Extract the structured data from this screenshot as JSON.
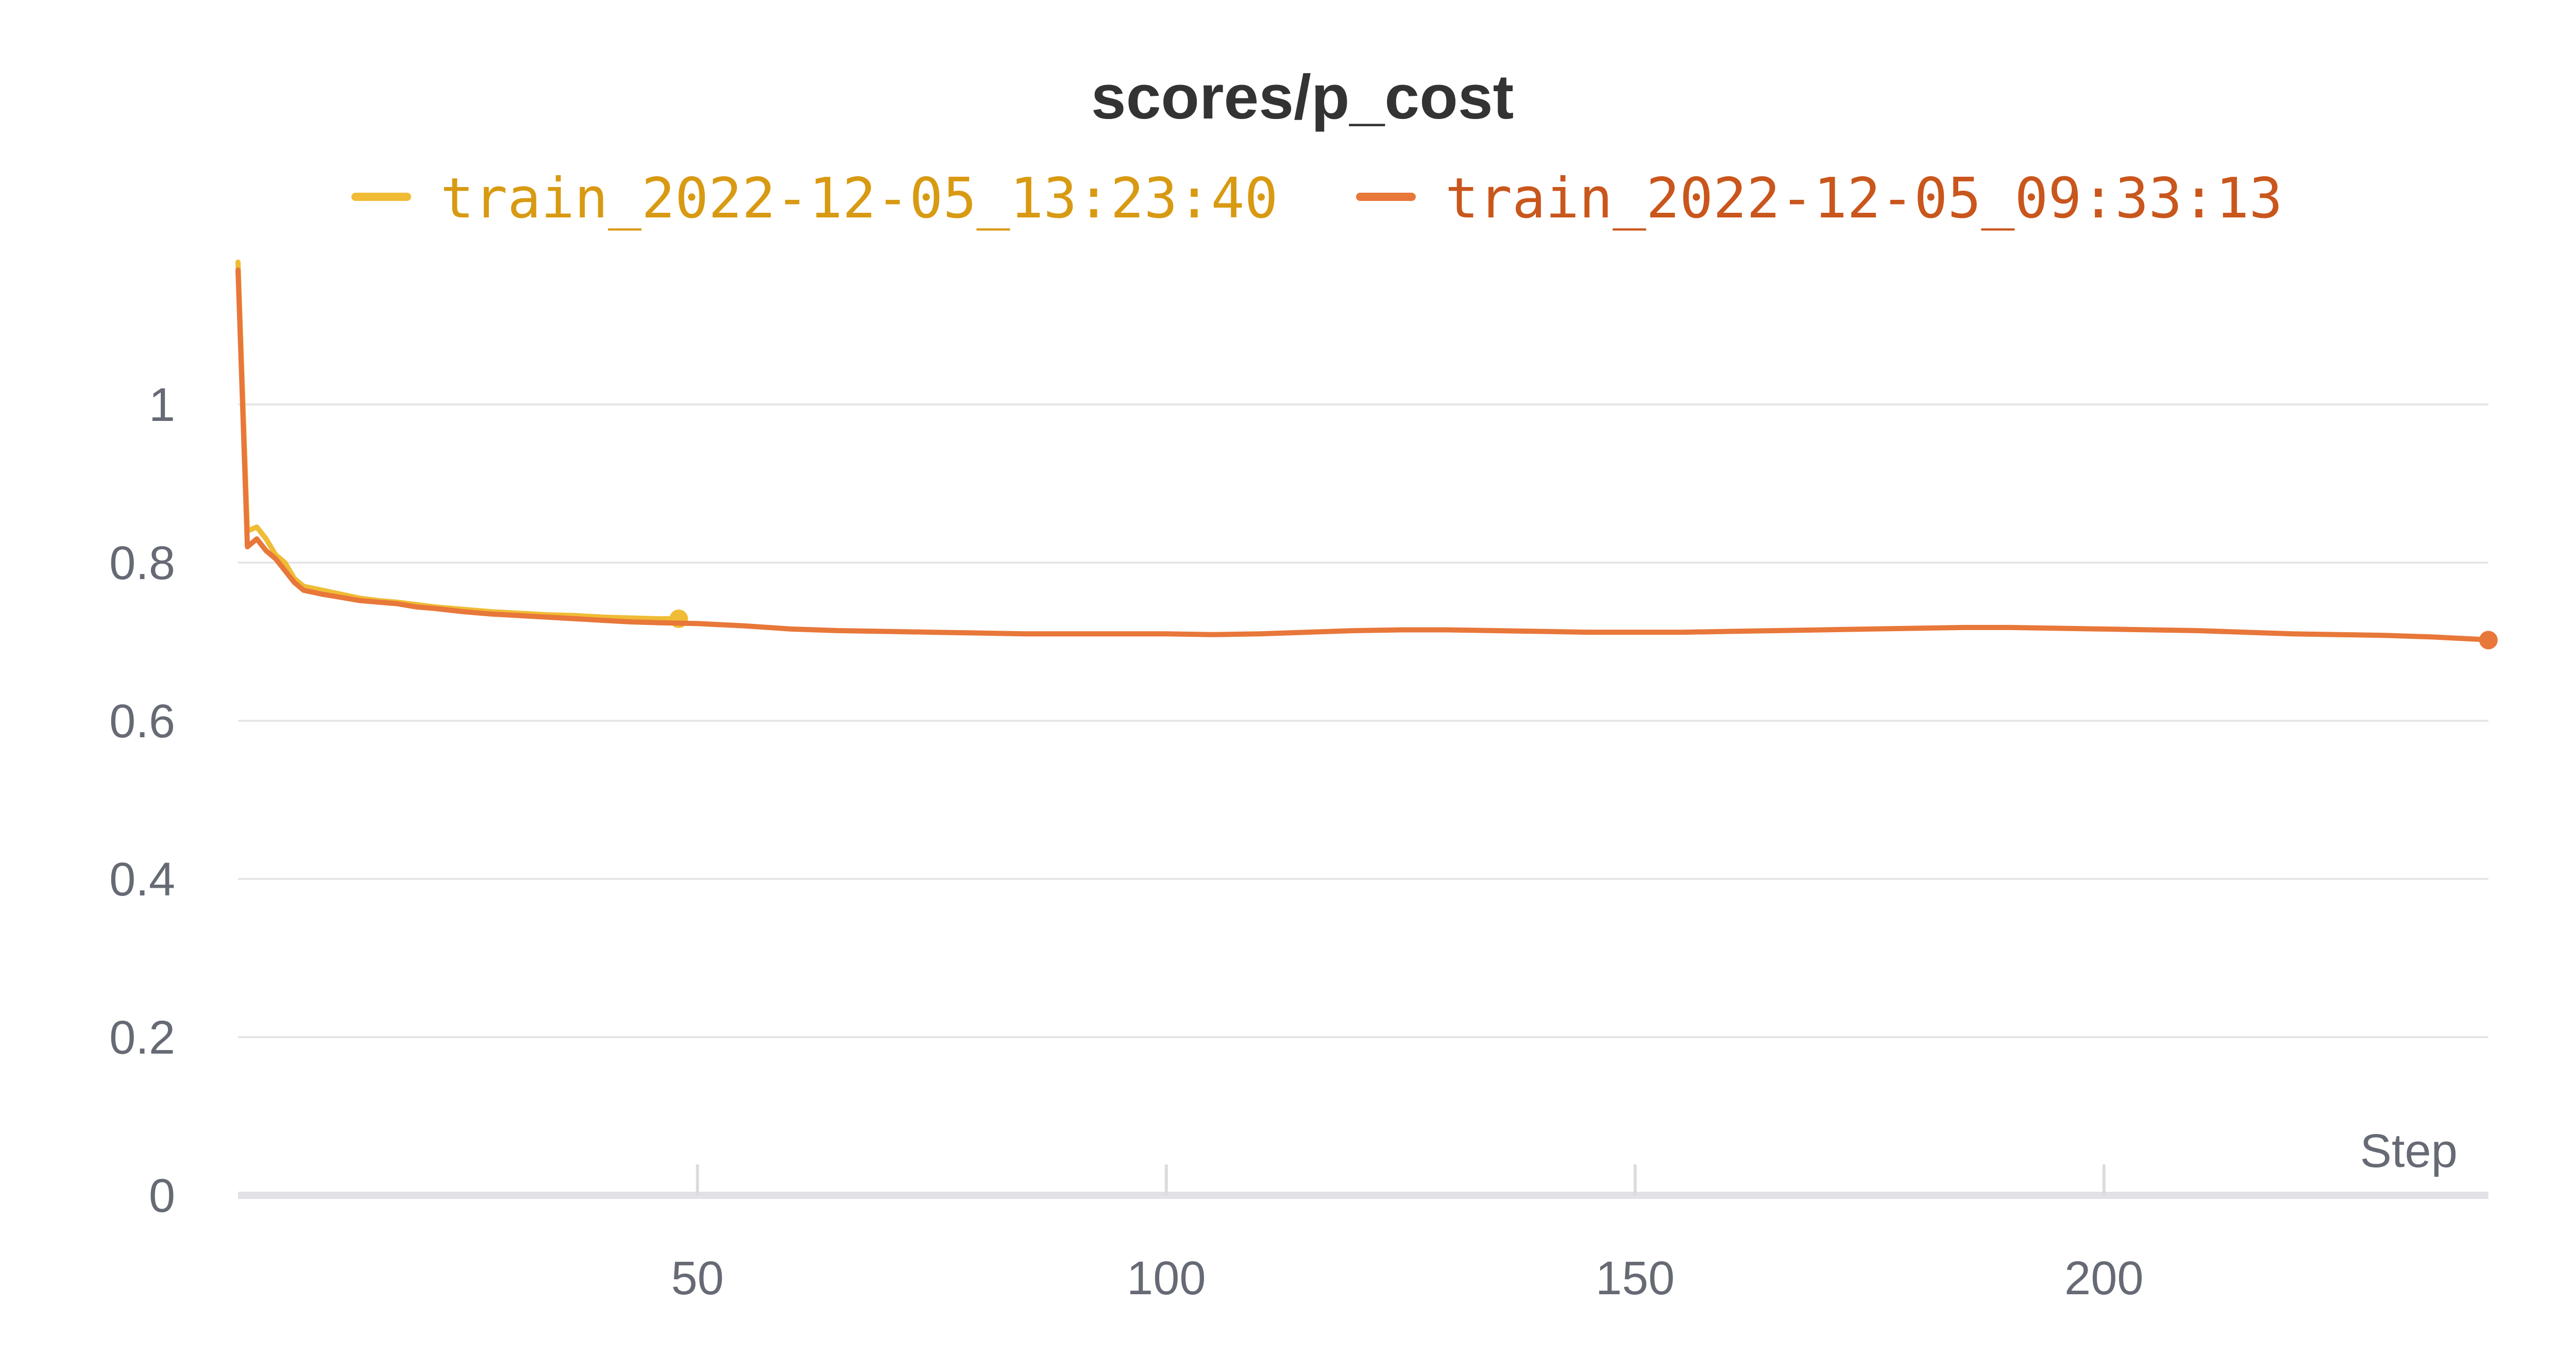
{
  "chart_data": {
    "type": "line",
    "title": "scores/p_cost",
    "xlabel": "Step",
    "ylabel": "",
    "xlim": [
      1,
      241
    ],
    "ylim": [
      0,
      1.18
    ],
    "x_ticks": [
      50,
      100,
      150,
      200
    ],
    "x_tick_labels": [
      "50",
      "100",
      "150",
      "200"
    ],
    "y_ticks": [
      0,
      0.2,
      0.4,
      0.6,
      0.8,
      1
    ],
    "y_tick_labels": [
      "0",
      "0.2",
      "0.4",
      "0.6",
      "0.8",
      "1"
    ],
    "grid": true,
    "legend_position": "top",
    "series": [
      {
        "name": "train_2022-12-05_13:23:40",
        "color": "#F0BC35",
        "legend_text_color": "#D89A12",
        "end_marker": true,
        "points": [
          [
            1,
            1.18
          ],
          [
            2,
            0.84
          ],
          [
            3,
            0.845
          ],
          [
            4,
            0.83
          ],
          [
            5,
            0.81
          ],
          [
            6,
            0.8
          ],
          [
            7,
            0.78
          ],
          [
            8,
            0.77
          ],
          [
            10,
            0.765
          ],
          [
            12,
            0.76
          ],
          [
            14,
            0.755
          ],
          [
            16,
            0.752
          ],
          [
            18,
            0.75
          ],
          [
            20,
            0.747
          ],
          [
            22,
            0.744
          ],
          [
            25,
            0.741
          ],
          [
            28,
            0.738
          ],
          [
            31,
            0.736
          ],
          [
            34,
            0.734
          ],
          [
            37,
            0.733
          ],
          [
            40,
            0.731
          ],
          [
            43,
            0.73
          ],
          [
            46,
            0.729
          ],
          [
            48,
            0.729
          ]
        ]
      },
      {
        "name": "train_2022-12-05_09:33:13",
        "color": "#E8773A",
        "legend_text_color": "#C9561C",
        "end_marker": true,
        "points": [
          [
            1,
            1.17
          ],
          [
            2,
            0.82
          ],
          [
            3,
            0.83
          ],
          [
            4,
            0.815
          ],
          [
            5,
            0.805
          ],
          [
            6,
            0.79
          ],
          [
            7,
            0.775
          ],
          [
            8,
            0.765
          ],
          [
            10,
            0.76
          ],
          [
            12,
            0.756
          ],
          [
            14,
            0.752
          ],
          [
            16,
            0.75
          ],
          [
            18,
            0.748
          ],
          [
            20,
            0.744
          ],
          [
            22,
            0.742
          ],
          [
            25,
            0.738
          ],
          [
            28,
            0.735
          ],
          [
            31,
            0.733
          ],
          [
            34,
            0.731
          ],
          [
            37,
            0.729
          ],
          [
            40,
            0.727
          ],
          [
            43,
            0.725
          ],
          [
            46,
            0.724
          ],
          [
            50,
            0.723
          ],
          [
            55,
            0.72
          ],
          [
            60,
            0.716
          ],
          [
            65,
            0.714
          ],
          [
            70,
            0.713
          ],
          [
            75,
            0.712
          ],
          [
            80,
            0.711
          ],
          [
            85,
            0.71
          ],
          [
            90,
            0.71
          ],
          [
            95,
            0.71
          ],
          [
            100,
            0.71
          ],
          [
            105,
            0.709
          ],
          [
            110,
            0.71
          ],
          [
            115,
            0.712
          ],
          [
            120,
            0.714
          ],
          [
            125,
            0.715
          ],
          [
            130,
            0.715
          ],
          [
            135,
            0.714
          ],
          [
            140,
            0.713
          ],
          [
            145,
            0.712
          ],
          [
            150,
            0.712
          ],
          [
            155,
            0.712
          ],
          [
            160,
            0.713
          ],
          [
            165,
            0.714
          ],
          [
            170,
            0.715
          ],
          [
            175,
            0.716
          ],
          [
            180,
            0.717
          ],
          [
            185,
            0.718
          ],
          [
            190,
            0.718
          ],
          [
            195,
            0.717
          ],
          [
            200,
            0.716
          ],
          [
            205,
            0.715
          ],
          [
            210,
            0.714
          ],
          [
            215,
            0.712
          ],
          [
            220,
            0.71
          ],
          [
            225,
            0.709
          ],
          [
            230,
            0.708
          ],
          [
            235,
            0.706
          ],
          [
            240,
            0.703
          ],
          [
            241,
            0.702
          ]
        ]
      }
    ]
  }
}
